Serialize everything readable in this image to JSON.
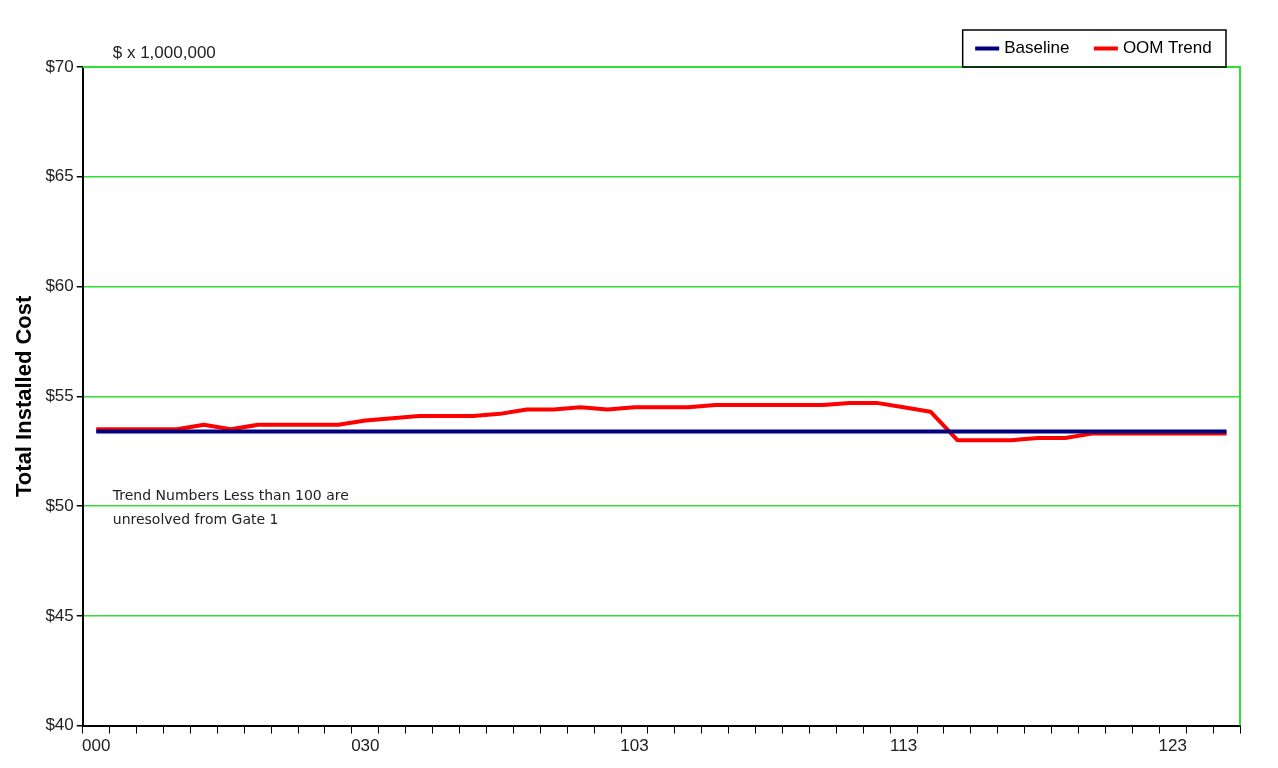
{
  "chart_data": {
    "type": "line",
    "ylabel": "Total Installed Cost",
    "annotations": [
      "$ x 1,000,000",
      "Trend Numbers Less than 100 are unresolved from Gate 1"
    ],
    "categories": [
      "000",
      null,
      null,
      null,
      null,
      null,
      null,
      null,
      null,
      null,
      "030",
      null,
      null,
      null,
      null,
      null,
      null,
      null,
      null,
      null,
      "103",
      null,
      null,
      null,
      null,
      null,
      null,
      null,
      null,
      null,
      "113",
      null,
      null,
      null,
      null,
      null,
      null,
      null,
      null,
      null,
      "123",
      null,
      null
    ],
    "series": [
      {
        "name": "Baseline",
        "color": "#000080",
        "values": [
          53.4,
          53.4,
          53.4,
          53.4,
          53.4,
          53.4,
          53.4,
          53.4,
          53.4,
          53.4,
          53.4,
          53.4,
          53.4,
          53.4,
          53.4,
          53.4,
          53.4,
          53.4,
          53.4,
          53.4,
          53.4,
          53.4,
          53.4,
          53.4,
          53.4,
          53.4,
          53.4,
          53.4,
          53.4,
          53.4,
          53.4,
          53.4,
          53.4,
          53.4,
          53.4,
          53.4,
          53.4,
          53.4,
          53.4,
          53.4,
          53.4,
          53.4,
          53.4
        ]
      },
      {
        "name": "OOM Trend",
        "color": "#ff0000",
        "values": [
          53.5,
          53.5,
          53.5,
          53.5,
          53.7,
          53.5,
          53.7,
          53.7,
          53.7,
          53.7,
          53.9,
          54.0,
          54.1,
          54.1,
          54.1,
          54.2,
          54.4,
          54.4,
          54.5,
          54.4,
          54.5,
          54.5,
          54.5,
          54.6,
          54.6,
          54.6,
          54.6,
          54.6,
          54.7,
          54.7,
          54.5,
          54.3,
          53.0,
          53.0,
          53.0,
          53.1,
          53.1,
          53.3,
          53.3,
          53.3,
          53.3,
          53.3,
          53.3
        ]
      }
    ],
    "ylim": [
      40,
      70
    ],
    "yticks": [
      {
        "value": 40,
        "label": "$40"
      },
      {
        "value": 45,
        "label": "$45"
      },
      {
        "value": 50,
        "label": "$50"
      },
      {
        "value": 55,
        "label": "$55"
      },
      {
        "value": 60,
        "label": "$60"
      },
      {
        "value": 65,
        "label": "$65"
      },
      {
        "value": 70,
        "label": "$70"
      }
    ],
    "grid": "y",
    "legend": "top right",
    "marker": "none",
    "line_style": "solid"
  }
}
